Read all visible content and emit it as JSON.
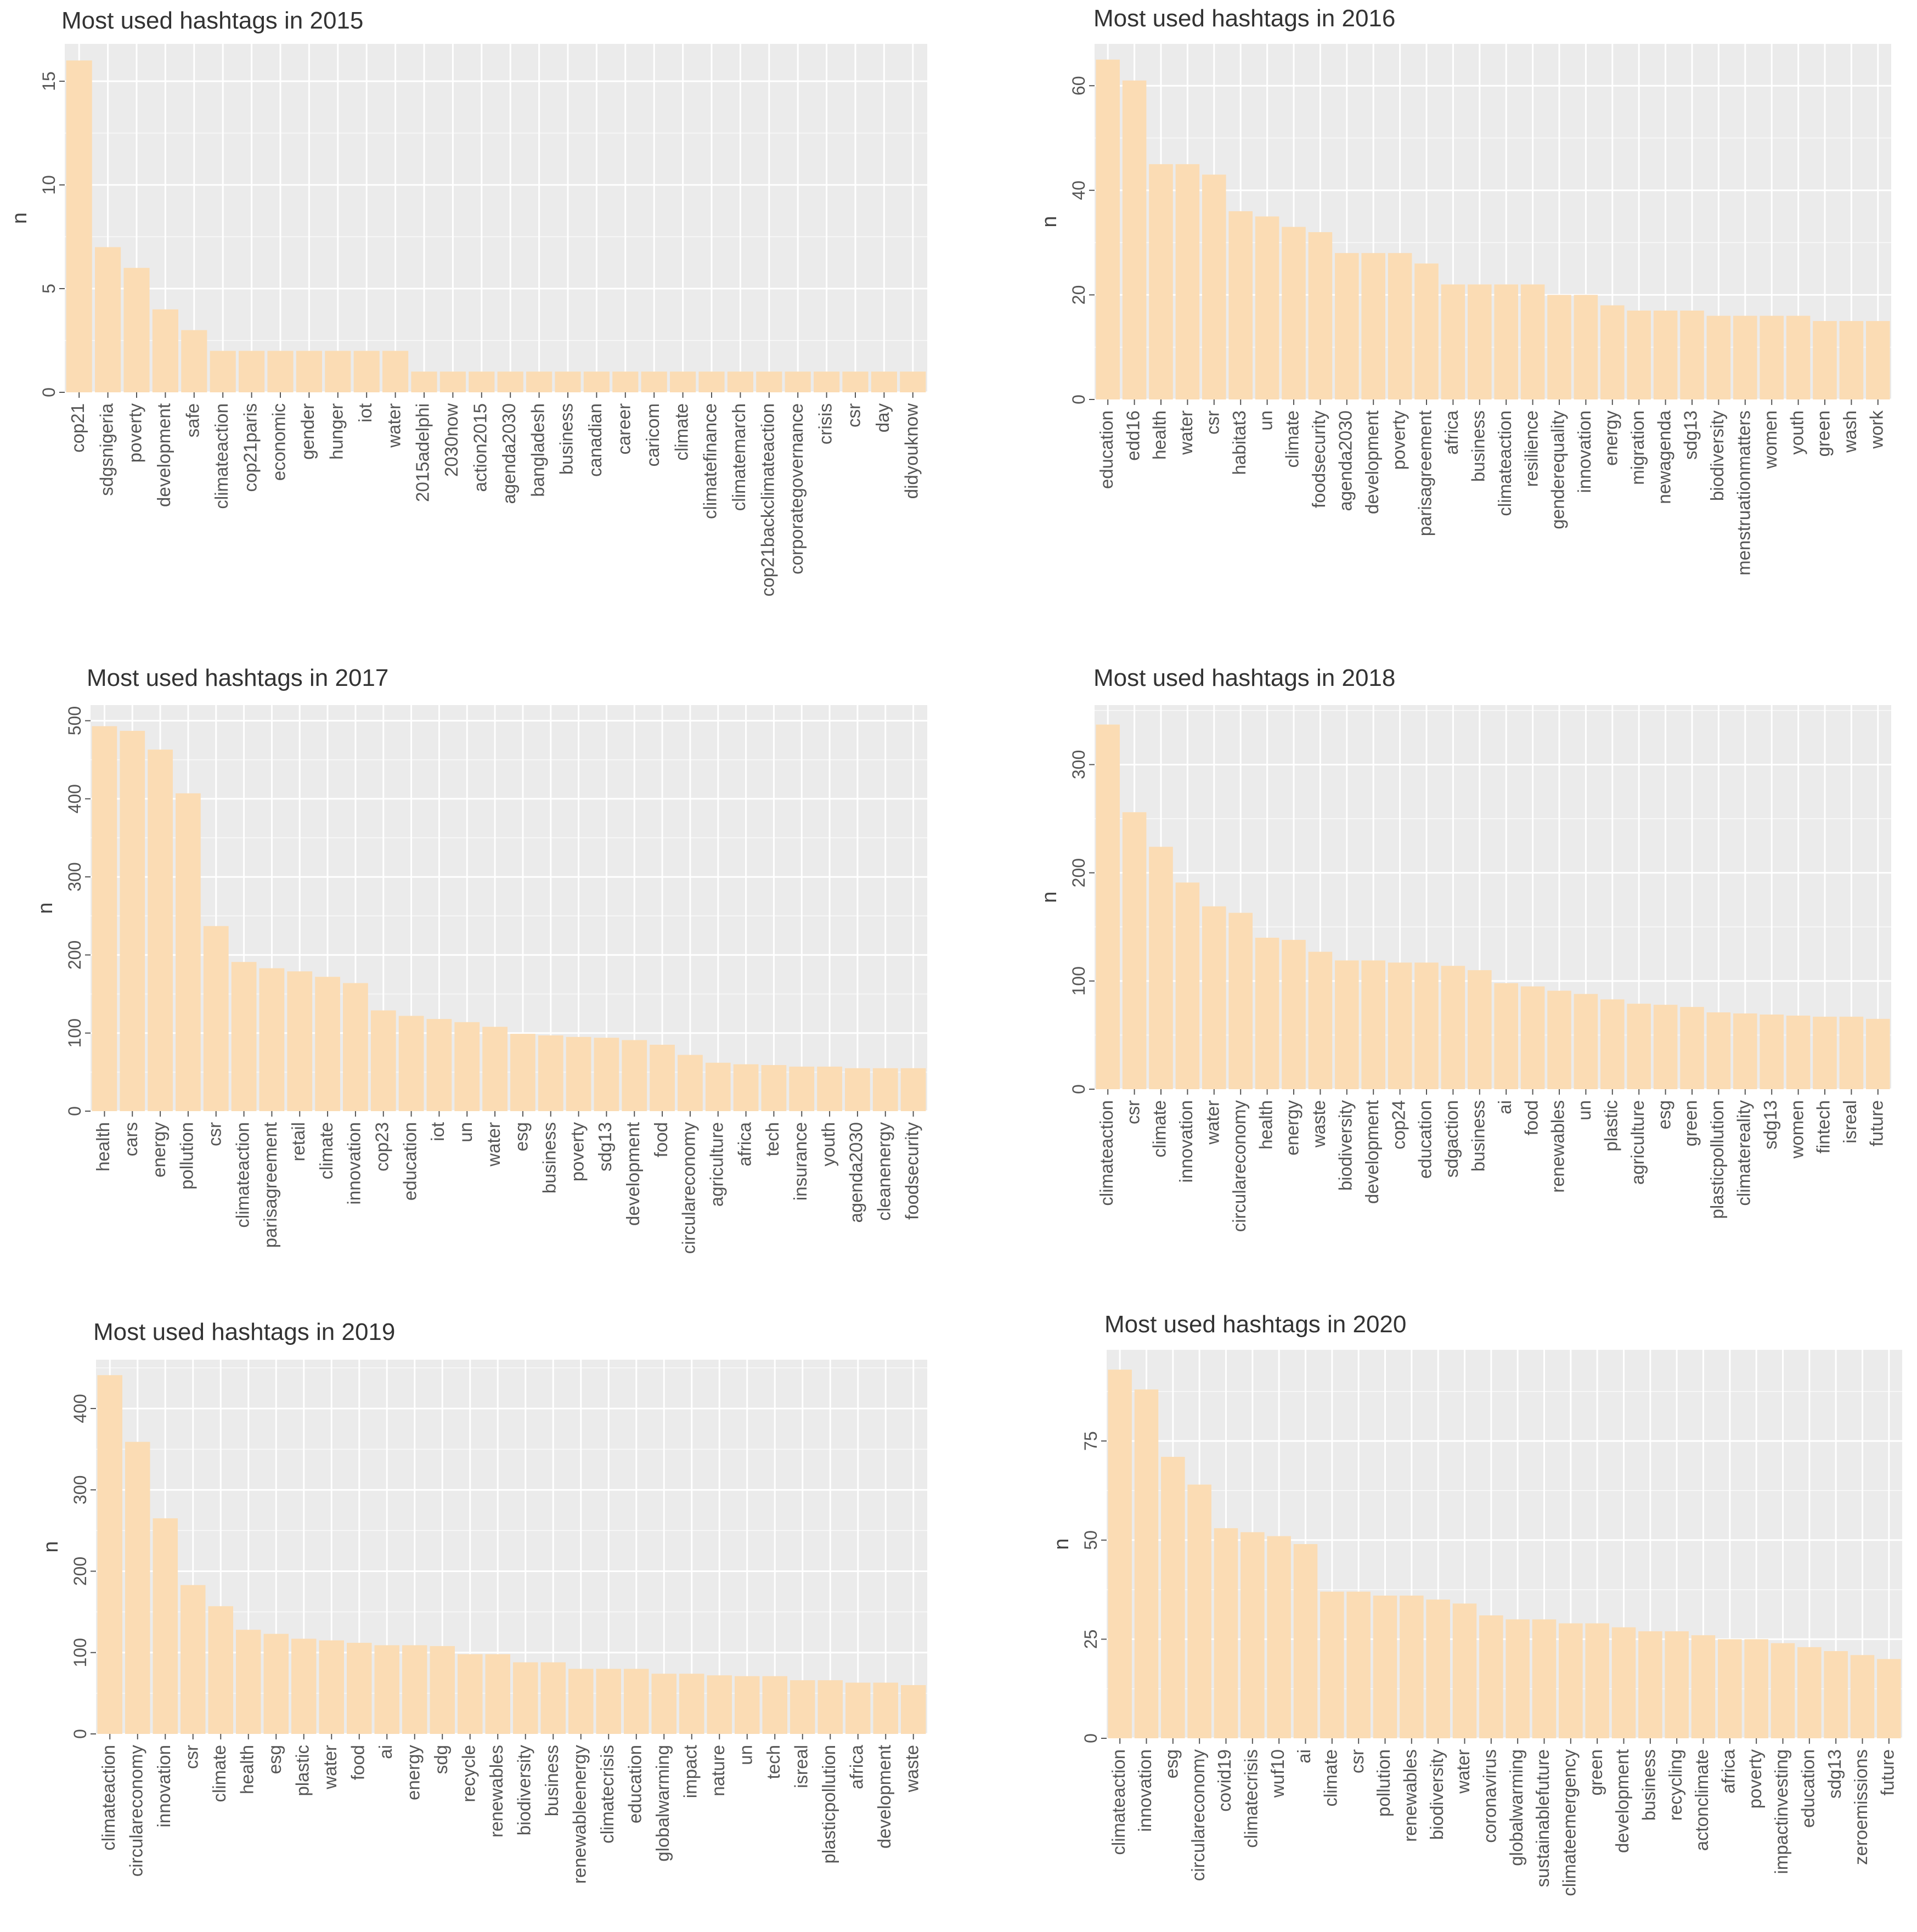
{
  "figure": {
    "bar_color": "#fbdcb4",
    "panel_bg": "#ebebeb"
  },
  "chart_data": [
    {
      "type": "bar",
      "title": "Most used hashtags in 2015",
      "xlabel": "",
      "ylabel": "n",
      "ylim": [
        0,
        16.8
      ],
      "yticks": [
        0,
        5,
        10,
        15
      ],
      "categories": [
        "cop21",
        "sdgsnigeria",
        "poverty",
        "development",
        "safe",
        "climateaction",
        "cop21paris",
        "economic",
        "gender",
        "hunger",
        "iot",
        "water",
        "2015adelphi",
        "2030now",
        "action2015",
        "agenda2030",
        "bangladesh",
        "business",
        "canadian",
        "career",
        "caricom",
        "climate",
        "climatefinance",
        "climatemarch",
        "cop21backclimateaction",
        "corporategovernance",
        "crisis",
        "csr",
        "day",
        "didyouknow"
      ],
      "values": [
        16,
        7,
        6,
        4,
        3,
        2,
        2,
        2,
        2,
        2,
        2,
        2,
        1,
        1,
        1,
        1,
        1,
        1,
        1,
        1,
        1,
        1,
        1,
        1,
        1,
        1,
        1,
        1,
        1,
        1
      ]
    },
    {
      "type": "bar",
      "title": "Most used hashtags in 2016",
      "xlabel": "",
      "ylabel": "n",
      "ylim": [
        0,
        68
      ],
      "yticks": [
        0,
        20,
        40,
        60
      ],
      "categories": [
        "education",
        "edd16",
        "health",
        "water",
        "csr",
        "habitat3",
        "un",
        "climate",
        "foodsecurity",
        "agenda2030",
        "development",
        "poverty",
        "parisagreement",
        "africa",
        "business",
        "climateaction",
        "resilience",
        "genderequality",
        "innovation",
        "energy",
        "migration",
        "newagenda",
        "sdg13",
        "biodiversity",
        "menstruationmatters",
        "women",
        "youth",
        "green",
        "wash",
        "work"
      ],
      "values": [
        65,
        61,
        45,
        45,
        43,
        36,
        35,
        33,
        32,
        28,
        28,
        28,
        26,
        22,
        22,
        22,
        22,
        20,
        20,
        18,
        17,
        17,
        17,
        16,
        16,
        16,
        16,
        15,
        15,
        15
      ]
    },
    {
      "type": "bar",
      "title": "Most used hashtags in 2017",
      "xlabel": "",
      "ylabel": "n",
      "ylim": [
        0,
        520
      ],
      "yticks": [
        0,
        100,
        200,
        300,
        400,
        500
      ],
      "categories": [
        "health",
        "cars",
        "energy",
        "pollution",
        "csr",
        "climateaction",
        "parisagreement",
        "retail",
        "climate",
        "innovation",
        "cop23",
        "education",
        "iot",
        "un",
        "water",
        "esg",
        "business",
        "poverty",
        "sdg13",
        "development",
        "food",
        "circulareconomy",
        "agriculture",
        "africa",
        "tech",
        "insurance",
        "youth",
        "agenda2030",
        "cleanenergy",
        "foodsecurity"
      ],
      "values": [
        493,
        487,
        463,
        407,
        237,
        191,
        183,
        179,
        172,
        164,
        129,
        122,
        118,
        114,
        108,
        99,
        97,
        95,
        94,
        91,
        85,
        72,
        62,
        60,
        59,
        57,
        57,
        55,
        55,
        55
      ]
    },
    {
      "type": "bar",
      "title": "Most used hashtags in 2018",
      "xlabel": "",
      "ylabel": "n",
      "ylim": [
        0,
        355
      ],
      "yticks": [
        0,
        100,
        200,
        300
      ],
      "categories": [
        "climateaction",
        "csr",
        "climate",
        "innovation",
        "water",
        "circulareconomy",
        "health",
        "energy",
        "waste",
        "biodiversity",
        "development",
        "cop24",
        "education",
        "sdgaction",
        "business",
        "ai",
        "food",
        "renewables",
        "un",
        "plastic",
        "agriculture",
        "esg",
        "green",
        "plasticpollution",
        "climatereality",
        "sdg13",
        "women",
        "fintech",
        "isreal",
        "future"
      ],
      "values": [
        337,
        256,
        224,
        191,
        169,
        163,
        140,
        138,
        127,
        119,
        119,
        117,
        117,
        114,
        110,
        98,
        95,
        91,
        88,
        83,
        79,
        78,
        76,
        71,
        70,
        69,
        68,
        67,
        67,
        65
      ]
    },
    {
      "type": "bar",
      "title": "Most used hashtags in 2019",
      "xlabel": "",
      "ylabel": "n",
      "ylim": [
        0,
        460
      ],
      "yticks": [
        0,
        100,
        200,
        300,
        400
      ],
      "categories": [
        "climateaction",
        "circulareconomy",
        "innovation",
        "csr",
        "climate",
        "health",
        "esg",
        "plastic",
        "water",
        "food",
        "ai",
        "energy",
        "sdg",
        "recycle",
        "renewables",
        "biodiversity",
        "business",
        "renewableenergy",
        "climatecrisis",
        "education",
        "globalwarming",
        "impact",
        "nature",
        "un",
        "tech",
        "isreal",
        "plasticpollution",
        "africa",
        "development",
        "waste"
      ],
      "values": [
        441,
        359,
        265,
        183,
        157,
        128,
        123,
        117,
        115,
        112,
        109,
        109,
        108,
        98,
        98,
        88,
        88,
        80,
        80,
        80,
        74,
        74,
        72,
        71,
        71,
        66,
        66,
        63,
        63,
        60
      ]
    },
    {
      "type": "bar",
      "title": "Most used hashtags in 2020",
      "xlabel": "",
      "ylabel": "n",
      "ylim": [
        0,
        98
      ],
      "yticks": [
        0,
        25,
        50,
        75
      ],
      "categories": [
        "climateaction",
        "innovation",
        "esg",
        "circulareconomy",
        "covid19",
        "climatecrisis",
        "wuf10",
        "ai",
        "climate",
        "csr",
        "pollution",
        "renewables",
        "biodiversity",
        "water",
        "coronavirus",
        "globalwarming",
        "sustainablefuture",
        "climateemergency",
        "green",
        "development",
        "business",
        "recycling",
        "actonclimate",
        "africa",
        "poverty",
        "impactinvesting",
        "education",
        "sdg13",
        "zeroemissions",
        "future"
      ],
      "values": [
        93,
        88,
        71,
        64,
        53,
        52,
        51,
        49,
        37,
        37,
        36,
        36,
        35,
        34,
        31,
        30,
        30,
        29,
        29,
        28,
        27,
        27,
        26,
        25,
        25,
        24,
        23,
        22,
        21,
        20
      ]
    }
  ]
}
